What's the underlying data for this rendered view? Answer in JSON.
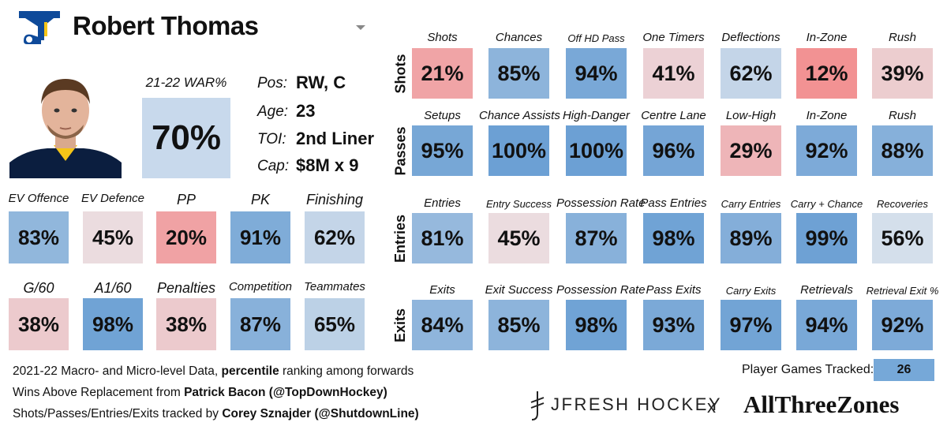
{
  "player": {
    "name": "Robert Thomas",
    "war_label": "21-22 WAR%",
    "war_value": "70%",
    "info": [
      {
        "label": "Pos:",
        "value": "RW, C"
      },
      {
        "label": "Age:",
        "value": "23"
      },
      {
        "label": "TOI:",
        "value": "2nd Liner"
      },
      {
        "label": "Cap:",
        "value": "$8M x 9"
      }
    ]
  },
  "left_rows": [
    {
      "items": [
        {
          "label": "EV Offence",
          "value": "83%",
          "percentile": 83
        },
        {
          "label": "EV Defence",
          "value": "45%",
          "percentile": 45
        },
        {
          "label": "PP",
          "value": "20%",
          "percentile": 20
        },
        {
          "label": "PK",
          "value": "91%",
          "percentile": 91
        },
        {
          "label": "Finishing",
          "value": "62%",
          "percentile": 62
        }
      ]
    },
    {
      "items": [
        {
          "label": "G/60",
          "value": "38%",
          "percentile": 38
        },
        {
          "label": "A1/60",
          "value": "98%",
          "percentile": 98
        },
        {
          "label": "Penalties",
          "value": "38%",
          "percentile": 38
        },
        {
          "label": "Competition",
          "value": "87%",
          "percentile": 87
        },
        {
          "label": "Teammates",
          "value": "65%",
          "percentile": 65
        }
      ]
    }
  ],
  "micro_rows": [
    {
      "name": "Shots",
      "items": [
        {
          "label": "Shots",
          "value": "21%",
          "percentile": 21
        },
        {
          "label": "Chances",
          "value": "85%",
          "percentile": 85
        },
        {
          "label": "Off HD Pass",
          "value": "94%",
          "percentile": 94
        },
        {
          "label": "One Timers",
          "value": "41%",
          "percentile": 41
        },
        {
          "label": "Deflections",
          "value": "62%",
          "percentile": 62
        },
        {
          "label": "In-Zone",
          "value": "12%",
          "percentile": 12
        },
        {
          "label": "Rush",
          "value": "39%",
          "percentile": 39
        }
      ]
    },
    {
      "name": "Passes",
      "items": [
        {
          "label": "Setups",
          "value": "95%",
          "percentile": 95
        },
        {
          "label": "Chance Assists",
          "value": "100%",
          "percentile": 100
        },
        {
          "label": "High-Danger",
          "value": "100%",
          "percentile": 100
        },
        {
          "label": "Centre Lane",
          "value": "96%",
          "percentile": 96
        },
        {
          "label": "Low-High",
          "value": "29%",
          "percentile": 29
        },
        {
          "label": "In-Zone",
          "value": "92%",
          "percentile": 92
        },
        {
          "label": "Rush",
          "value": "88%",
          "percentile": 88
        }
      ]
    },
    {
      "name": "Entries",
      "items": [
        {
          "label": "Entries",
          "value": "81%",
          "percentile": 81
        },
        {
          "label": "Entry Success",
          "value": "45%",
          "percentile": 45
        },
        {
          "label": "Possession Rate",
          "value": "87%",
          "percentile": 87
        },
        {
          "label": "Pass Entries",
          "value": "98%",
          "percentile": 98
        },
        {
          "label": "Carry Entries",
          "value": "89%",
          "percentile": 89
        },
        {
          "label": "Carry + Chance",
          "value": "99%",
          "percentile": 99
        },
        {
          "label": "Recoveries",
          "value": "56%",
          "percentile": 56
        }
      ]
    },
    {
      "name": "Exits",
      "items": [
        {
          "label": "Exits",
          "value": "84%",
          "percentile": 84
        },
        {
          "label": "Exit Success",
          "value": "85%",
          "percentile": 85
        },
        {
          "label": "Possession Rate",
          "value": "98%",
          "percentile": 98
        },
        {
          "label": "Pass Exits",
          "value": "93%",
          "percentile": 93
        },
        {
          "label": "Carry Exits",
          "value": "97%",
          "percentile": 97
        },
        {
          "label": "Retrievals",
          "value": "94%",
          "percentile": 94
        },
        {
          "label": "Retrieval Exit %",
          "value": "92%",
          "percentile": 92
        }
      ]
    }
  ],
  "footer": {
    "line1_pre": "2021-22 Macro- and Micro-level Data, ",
    "line1_bold": "percentile",
    "line1_post": " ranking among forwards",
    "line2_pre": "Wins Above Replacement from ",
    "line2_bold": "Patrick Bacon (@TopDownHockey)",
    "line3_pre": "Shots/Passes/Entries/Exits tracked by ",
    "line3_bold": "Corey Sznajder (@ShutdownLine)",
    "games_label": "Player Games Tracked:",
    "games_value": "26",
    "brand1": "JFRESH HOCKEY",
    "separator": "x",
    "brand2": "AllThreeZones"
  },
  "colors": {
    "team_blue": "#0e4a9a",
    "team_navy": "#0b1e3f",
    "games_box": "#76a8d8",
    "war_box": "#c8d9ec"
  }
}
